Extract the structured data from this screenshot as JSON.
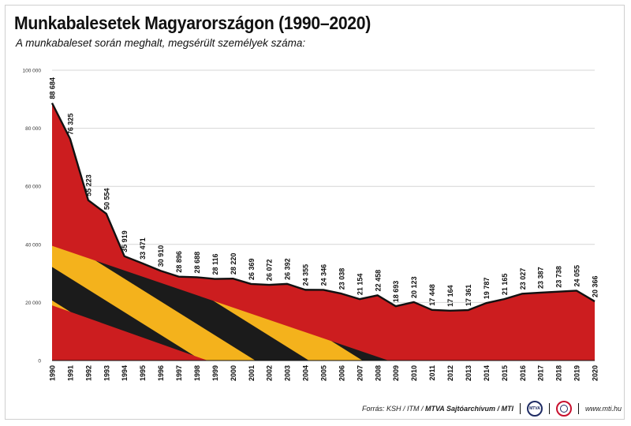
{
  "header": {
    "title": "Munkabalesetek Magyarországon (1990–2020)",
    "subtitle": "A munkabaleset során meghalt, megsérült személyek száma:"
  },
  "footer": {
    "source_prefix": "Forrás: KSH / ITM / ",
    "source_bold": "MTVA Sajtóarchívum / MTI",
    "logo_text": "MTVA",
    "website": "www.mti.hu"
  },
  "colors": {
    "area": "#cc1d1f",
    "line": "#111111",
    "stripe_yellow": "#f4b21c",
    "stripe_black": "#1b1b1b",
    "grid": "#d6d6d6"
  },
  "chart_data": {
    "type": "area",
    "title": "Munkabalesetek Magyarországon (1990–2020)",
    "subtitle": "A munkabaleset során meghalt, megsérült személyek száma:",
    "x": [
      1990,
      1991,
      1992,
      1993,
      1994,
      1995,
      1996,
      1997,
      1998,
      1999,
      2000,
      2001,
      2002,
      2003,
      2004,
      2005,
      2006,
      2007,
      2008,
      2009,
      2010,
      2011,
      2012,
      2013,
      2014,
      2015,
      2016,
      2017,
      2018,
      2019,
      2020
    ],
    "values": [
      88684,
      76325,
      55223,
      50554,
      35919,
      33471,
      30910,
      28896,
      28688,
      28116,
      28220,
      26369,
      26072,
      26392,
      24355,
      24346,
      23038,
      21154,
      22458,
      18693,
      20123,
      17448,
      17164,
      17361,
      19787,
      21165,
      23027,
      23387,
      23738,
      24055,
      20366
    ],
    "value_labels": [
      "88 684",
      "76 325",
      "55 223",
      "50 554",
      "35 919",
      "33 471",
      "30 910",
      "28 896",
      "28 688",
      "28 116",
      "28 220",
      "26 369",
      "26 072",
      "26 392",
      "24 355",
      "24 346",
      "23 038",
      "21 154",
      "22 458",
      "18 693",
      "20 123",
      "17 448",
      "17 164",
      "17 361",
      "19 787",
      "21 165",
      "23 027",
      "23 387",
      "23 738",
      "24 055",
      "20 366"
    ],
    "yticks": [
      0,
      20000,
      40000,
      60000,
      80000,
      100000
    ],
    "ytick_labels": [
      "0",
      "20 000",
      "40 000",
      "60 000",
      "80 000",
      "100 000"
    ],
    "ylim": [
      0,
      100000
    ],
    "xlabel": "",
    "ylabel": "",
    "grid": true
  }
}
